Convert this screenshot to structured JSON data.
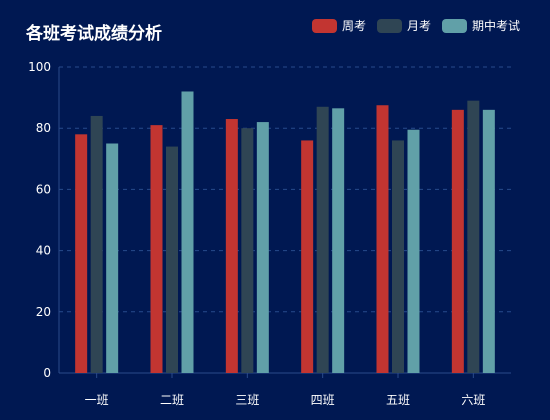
{
  "chart_data": {
    "type": "bar",
    "title": "各班考试成绩分析",
    "categories": [
      "一班",
      "二班",
      "三班",
      "四班",
      "五班",
      "六班"
    ],
    "series": [
      {
        "name": "周考",
        "color": "#c23531",
        "values": [
          78,
          81,
          83,
          76,
          87.5,
          86
        ]
      },
      {
        "name": "月考",
        "color": "#2f4554",
        "values": [
          84,
          74,
          80,
          87,
          76,
          89
        ]
      },
      {
        "name": "期中考试",
        "color": "#61a0a8",
        "values": [
          75,
          92,
          82,
          86.5,
          79.5,
          86
        ]
      }
    ],
    "y_ticks": [
      "0",
      "20",
      "40",
      "60",
      "80",
      "100"
    ],
    "ylim": [
      0,
      100
    ],
    "grid": "horizontal-dashed",
    "legend_position": "top-right",
    "colors": {
      "background": "#001852",
      "text": "#ffffff",
      "axis": "#2a4a8a",
      "grid": "#274a8c"
    }
  }
}
